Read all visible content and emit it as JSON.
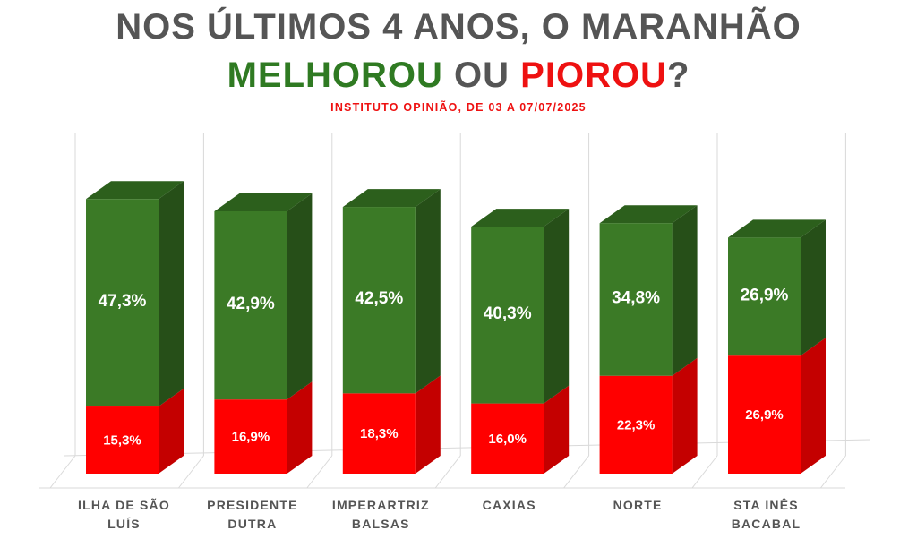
{
  "title_line1": "NOS ÚLTIMOS 4 ANOS, O MARANHÃO",
  "title_line2": {
    "word_green": "MELHOROU",
    "word_mid": " OU ",
    "word_red": "PIOROU",
    "end": "?"
  },
  "subtitle": "INSTITUTO OPINIÃO, DE 03 A 07/07/2025",
  "colors": {
    "green_front": "#3b7a26",
    "green_top": "#2c5f1c",
    "green_side": "#264f18",
    "red_front": "#ff0000",
    "red_side": "#c40000",
    "red_top": "#e00000",
    "grid": "#d9d9d9",
    "title": "#555555"
  },
  "chart_data": {
    "type": "bar",
    "stacked": true,
    "style": "3d",
    "categories": [
      [
        "ILHA DE SÃO",
        "LUÍS"
      ],
      [
        "PRESIDENTE",
        "DUTRA"
      ],
      [
        "IMPERARTRIZ",
        "BALSAS"
      ],
      [
        "CAXIAS"
      ],
      [
        "NORTE"
      ],
      [
        "STA INÊS",
        "BACABAL"
      ]
    ],
    "series": [
      {
        "color": "#ff0000",
        "values": [
          15.3,
          16.9,
          18.3,
          16.0,
          22.3,
          26.9
        ],
        "labels": [
          "15,3%",
          "16,9%",
          "18,3%",
          "16,0%",
          "22,3%",
          "26,9%"
        ]
      },
      {
        "color": "#3b7a26",
        "values": [
          47.3,
          42.9,
          42.5,
          40.3,
          34.8,
          26.9
        ],
        "labels": [
          "47,3%",
          "42,9%",
          "42,5%",
          "40,3%",
          "34,8%",
          "26,9%"
        ]
      }
    ],
    "ylim": [
      0,
      70
    ],
    "grid": true,
    "legend": "none"
  }
}
